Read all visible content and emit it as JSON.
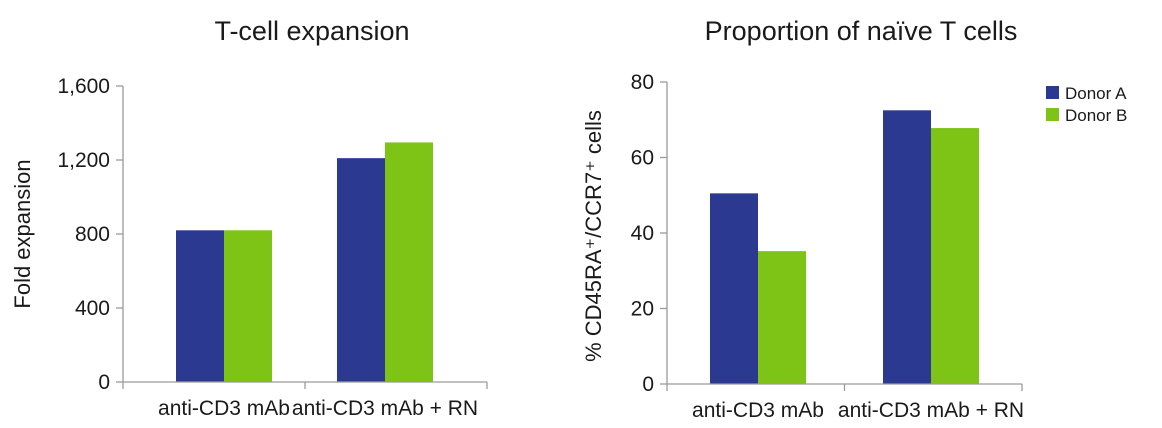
{
  "colors": {
    "donor_a": "#2b3990",
    "donor_b": "#7dc416",
    "axis": "#9a9a9a"
  },
  "chart_data": [
    {
      "type": "bar",
      "title": "T-cell expansion",
      "xlabel": "",
      "ylabel": "Fold expansion",
      "categories": [
        "anti-CD3 mAb",
        "anti-CD3 mAb + RN"
      ],
      "series": [
        {
          "name": "Donor A",
          "values": [
            820,
            1210
          ]
        },
        {
          "name": "Donor B",
          "values": [
            820,
            1295
          ]
        }
      ],
      "ylim": [
        0,
        1600
      ],
      "yticks": [
        0,
        400,
        800,
        1200,
        1600
      ],
      "ytick_labels": [
        "0",
        "400",
        "800",
        "1,200",
        "1,600"
      ],
      "grid": false,
      "legend": "none"
    },
    {
      "type": "bar",
      "title": "Proportion of naïve T cells",
      "xlabel": "",
      "ylabel": "% CD45RA⁺/CCR7⁺ cells",
      "categories": [
        "anti-CD3 mAb",
        "anti-CD3 mAb + RN"
      ],
      "series": [
        {
          "name": "Donor A",
          "values": [
            50.5,
            72.5
          ]
        },
        {
          "name": "Donor B",
          "values": [
            35.2,
            67.8
          ]
        }
      ],
      "ylim": [
        0,
        80
      ],
      "yticks": [
        0,
        20,
        40,
        60,
        80
      ],
      "ytick_labels": [
        "0",
        "20",
        "40",
        "60",
        "80"
      ],
      "grid": false,
      "legend": "top-right"
    }
  ]
}
